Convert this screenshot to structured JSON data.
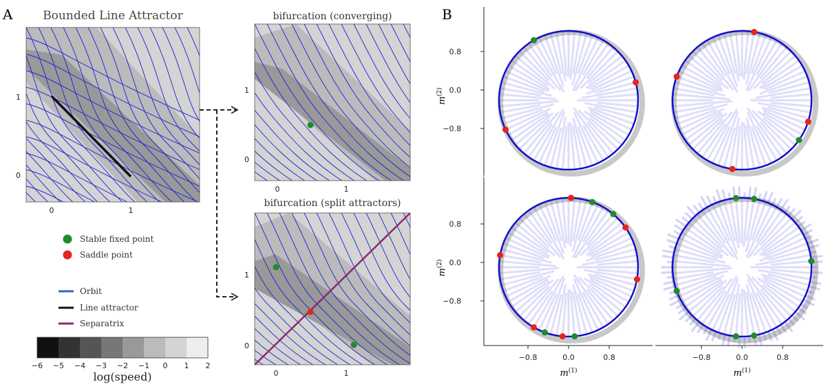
{
  "panel_labels": {
    "a": "A",
    "b": "B"
  },
  "titles": {
    "main": "Bounded Line Attractor",
    "converging": "bifurcation (converging)",
    "split": "bifurcation (split attractors)"
  },
  "legend": {
    "stable": "Stable fixed point",
    "saddle": "Saddle point",
    "orbit": "Orbit",
    "line_attractor": "Line attractor",
    "separatrix": "Separatrix"
  },
  "colorbar": {
    "label": "log(speed)",
    "ticks": [
      "−6",
      "−5",
      "−4",
      "−3",
      "−2",
      "−1",
      "0",
      "1",
      "2"
    ]
  },
  "ticks_a": {
    "zero": "0",
    "one": "1"
  },
  "ticks_b": {
    "y": [
      "0.8",
      "0.0",
      "−0.8"
    ],
    "x": [
      "−0.8",
      "0.0",
      "0.8"
    ]
  },
  "axis_labels": {
    "m2": "m",
    "m2_sup": "(2)",
    "m1": "m",
    "m1_sup": "(1)"
  },
  "colors": {
    "orbit": "#1f1fd6",
    "line_attractor": "#111111",
    "separatrix": "#8a2a6c",
    "stable": "#1e8c2a",
    "saddle": "#e6231d",
    "speed_levels": [
      "#111111",
      "#333333",
      "#555555",
      "#777777",
      "#999999",
      "#bbbbbb",
      "#d4d4d4",
      "#eeeeee"
    ]
  },
  "chart_data": [
    {
      "type": "other",
      "title": "Bounded Line Attractor",
      "description": "phase portrait with line attractor from (0,1) to (1,0)",
      "x_ticks": [
        0,
        1
      ],
      "y_ticks": [
        0,
        1
      ],
      "line_attractor": [
        [
          0,
          1
        ],
        [
          1,
          0
        ]
      ]
    },
    {
      "type": "other",
      "title": "bifurcation (converging)",
      "x_ticks": [
        0,
        1
      ],
      "y_ticks": [
        0,
        1
      ],
      "stable_points": [
        [
          0.5,
          0.5
        ]
      ]
    },
    {
      "type": "other",
      "title": "bifurcation (split attractors)",
      "x_ticks": [
        0,
        1
      ],
      "y_ticks": [
        0,
        1
      ],
      "stable_points": [
        [
          0,
          1.1
        ],
        [
          1.1,
          0
        ]
      ],
      "saddle_points": [
        [
          0.5,
          0.5
        ]
      ],
      "separatrix": "diagonal y = x"
    },
    {
      "type": "scatter",
      "title": "",
      "xlabel": "m(1)",
      "ylabel": "m(2)",
      "xlim": [
        -1.2,
        1.2
      ],
      "ylim": [
        -1.2,
        1.2
      ],
      "x_ticks": [
        -0.8,
        0.0,
        0.8
      ],
      "y_ticks": [
        0.8,
        0.0,
        -0.8
      ],
      "series": [
        {
          "name": "Stable fixed point",
          "points_deg": [
            [
              0,
              120
            ],
            [
              1,
              -35
            ],
            [
              2,
              70
            ],
            [
              2,
              50
            ],
            [
              2,
              250
            ],
            [
              2,
              275
            ],
            [
              3,
              95
            ],
            [
              3,
              80
            ],
            [
              3,
              5
            ],
            [
              3,
              200
            ],
            [
              3,
              265
            ],
            [
              3,
              280
            ]
          ]
        },
        {
          "name": "Saddle point",
          "points_deg": [
            [
              0,
              15
            ],
            [
              0,
              205
            ],
            [
              1,
              80
            ],
            [
              1,
              160
            ],
            [
              1,
              342
            ],
            [
              1,
              262
            ],
            [
              2,
              88
            ],
            [
              2,
              35
            ],
            [
              2,
              -10
            ],
            [
              2,
              170
            ],
            [
              2,
              240
            ],
            [
              2,
              265
            ]
          ]
        }
      ]
    }
  ]
}
